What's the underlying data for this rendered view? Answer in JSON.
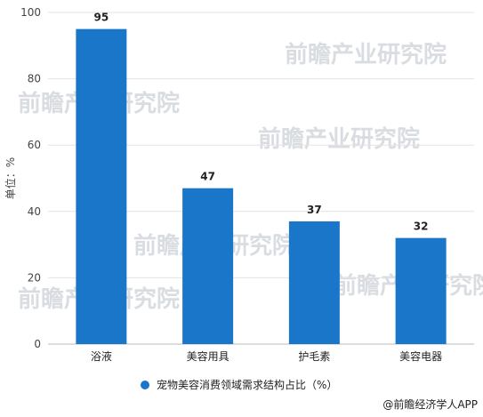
{
  "chart_data": {
    "type": "bar",
    "categories": [
      "浴液",
      "美容用具",
      "护毛素",
      "美容电器"
    ],
    "series": [
      {
        "name": "宠物美容消费领域需求结构占比（%）",
        "values": [
          95,
          47,
          37,
          32
        ]
      }
    ],
    "ylabel": "单位：%",
    "ylim": [
      0,
      100
    ],
    "yticks": [
      0,
      20,
      40,
      60,
      80,
      100
    ],
    "grid": true,
    "legend_position": "bottom",
    "bar_color": "#1976c8"
  },
  "watermark": "前瞻产业研究院",
  "credit": "@前瞻经济学人APP"
}
